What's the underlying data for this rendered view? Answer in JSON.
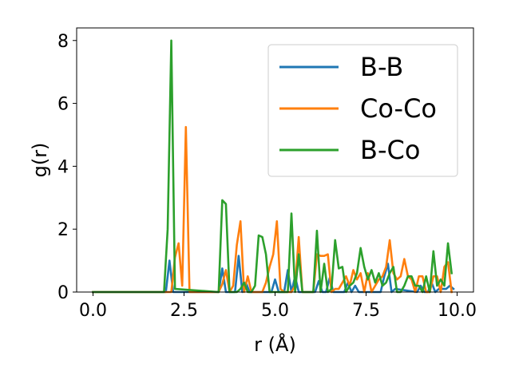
{
  "chart_data": {
    "type": "line",
    "xlabel": "r (Å)",
    "ylabel": "g(r)",
    "xlim": [
      -0.45,
      10.45
    ],
    "ylim": [
      0,
      8.4
    ],
    "xticks": [
      0.0,
      2.5,
      5.0,
      7.5,
      10.0
    ],
    "xtick_labels": [
      "0.0",
      "2.5",
      "5.0",
      "7.5",
      "10.0"
    ],
    "yticks": [
      0,
      2,
      4,
      6,
      8
    ],
    "ytick_labels": [
      "0",
      "2",
      "4",
      "6",
      "8"
    ],
    "grid": false,
    "legend_position": "top-right",
    "series": [
      {
        "name": "B-B",
        "color": "#1f77b4",
        "x": [
          0,
          2.0,
          2.1,
          2.2,
          3.45,
          3.55,
          3.65,
          3.9,
          4.0,
          4.1,
          4.2,
          4.3,
          4.9,
          5.0,
          5.1,
          5.25,
          5.35,
          5.45,
          5.55,
          5.65,
          6.1,
          6.2,
          6.3,
          6.4,
          6.5,
          6.6,
          6.9,
          7.0,
          7.1,
          7.2,
          7.3,
          7.9,
          8.0,
          8.1,
          8.2,
          8.3,
          8.9,
          9.0,
          9.1,
          9.2,
          9.3,
          9.4,
          9.5,
          9.7,
          9.8,
          9.9
        ],
        "y": [
          0,
          0,
          1.0,
          0,
          0,
          0.75,
          0,
          0,
          1.15,
          0,
          0.3,
          0,
          0,
          0.4,
          0,
          0,
          0.7,
          0,
          0.5,
          0,
          0,
          0.35,
          0,
          0,
          0.45,
          0,
          0,
          0.3,
          0,
          0.2,
          0,
          0,
          0.5,
          0.9,
          0,
          0.1,
          0,
          0.2,
          0,
          0,
          0.3,
          0,
          0.1,
          0.1,
          0.2,
          0.1
        ]
      },
      {
        "name": "Co-Co",
        "color": "#ff7f0e",
        "x": [
          0,
          2.15,
          2.25,
          2.35,
          2.45,
          2.55,
          2.65,
          2.75,
          3.45,
          3.55,
          3.65,
          3.75,
          3.85,
          3.95,
          4.05,
          4.15,
          4.25,
          4.35,
          4.55,
          4.65,
          4.75,
          4.85,
          4.95,
          5.05,
          5.15,
          5.25,
          5.35,
          5.45,
          5.55,
          5.65,
          5.75,
          5.85,
          5.95,
          6.05,
          6.15,
          6.25,
          6.35,
          6.45,
          6.55,
          6.65,
          6.75,
          6.85,
          6.95,
          7.05,
          7.15,
          7.25,
          7.35,
          7.45,
          7.55,
          7.65,
          7.75,
          7.85,
          7.95,
          8.05,
          8.15,
          8.25,
          8.35,
          8.45,
          8.55,
          8.65,
          8.75,
          8.85,
          8.95,
          9.05,
          9.15,
          9.25,
          9.35,
          9.45,
          9.55,
          9.65,
          9.75,
          9.85
        ],
        "y": [
          0,
          0,
          1.1,
          1.55,
          0.2,
          5.25,
          0,
          0,
          0,
          0.25,
          0.7,
          0,
          0.2,
          1.5,
          2.25,
          0,
          0.5,
          0,
          0,
          0,
          0.3,
          0.8,
          1.2,
          2.25,
          0.1,
          0,
          0,
          0,
          0.2,
          1.75,
          0,
          0,
          0,
          0,
          1.2,
          1.15,
          1.15,
          1.2,
          0,
          0.1,
          0.1,
          0.3,
          0.5,
          0.2,
          0.7,
          0.4,
          0.6,
          0,
          0.6,
          0,
          0.2,
          0.4,
          0.5,
          0.8,
          1.65,
          0.6,
          0.4,
          0.5,
          1.05,
          0.5,
          0.4,
          0,
          0.5,
          0.5,
          0,
          0,
          0.5,
          0.5,
          0,
          0.8,
          0.95,
          0
        ]
      },
      {
        "name": "B-Co",
        "color": "#2ca02c",
        "x": [
          0,
          1.95,
          2.05,
          2.15,
          2.25,
          3.45,
          3.55,
          3.65,
          3.75,
          3.85,
          3.95,
          4.05,
          4.15,
          4.25,
          4.35,
          4.45,
          4.55,
          4.65,
          4.75,
          4.85,
          4.95,
          5.05,
          5.15,
          5.25,
          5.35,
          5.45,
          5.55,
          5.65,
          5.75,
          5.85,
          5.95,
          6.05,
          6.15,
          6.25,
          6.35,
          6.45,
          6.55,
          6.65,
          6.75,
          6.85,
          6.95,
          7.05,
          7.15,
          7.25,
          7.35,
          7.45,
          7.55,
          7.65,
          7.75,
          7.85,
          7.95,
          8.05,
          8.15,
          8.25,
          8.35,
          8.45,
          8.55,
          8.65,
          8.75,
          8.85,
          8.95,
          9.05,
          9.15,
          9.25,
          9.35,
          9.45,
          9.55,
          9.65,
          9.75,
          9.85
        ],
        "y": [
          0,
          0,
          2.0,
          8.0,
          0.1,
          0,
          2.92,
          2.8,
          0,
          0,
          0,
          0.1,
          0.3,
          0,
          0,
          0.2,
          1.8,
          1.75,
          1.2,
          0,
          0,
          0,
          0,
          0,
          0,
          2.5,
          0,
          1.2,
          0,
          0,
          0,
          0,
          1.95,
          0,
          0.9,
          0,
          0.1,
          1.65,
          0.75,
          0.8,
          0,
          0.2,
          0.3,
          0.6,
          1.4,
          0.8,
          0.4,
          0.7,
          0.3,
          0.6,
          0.2,
          0.3,
          0.6,
          0.8,
          0,
          0,
          0.2,
          0.5,
          0.5,
          0.2,
          0.2,
          0,
          0.5,
          0,
          1.3,
          0.2,
          0.4,
          0.2,
          1.55,
          0.6
        ]
      }
    ]
  }
}
